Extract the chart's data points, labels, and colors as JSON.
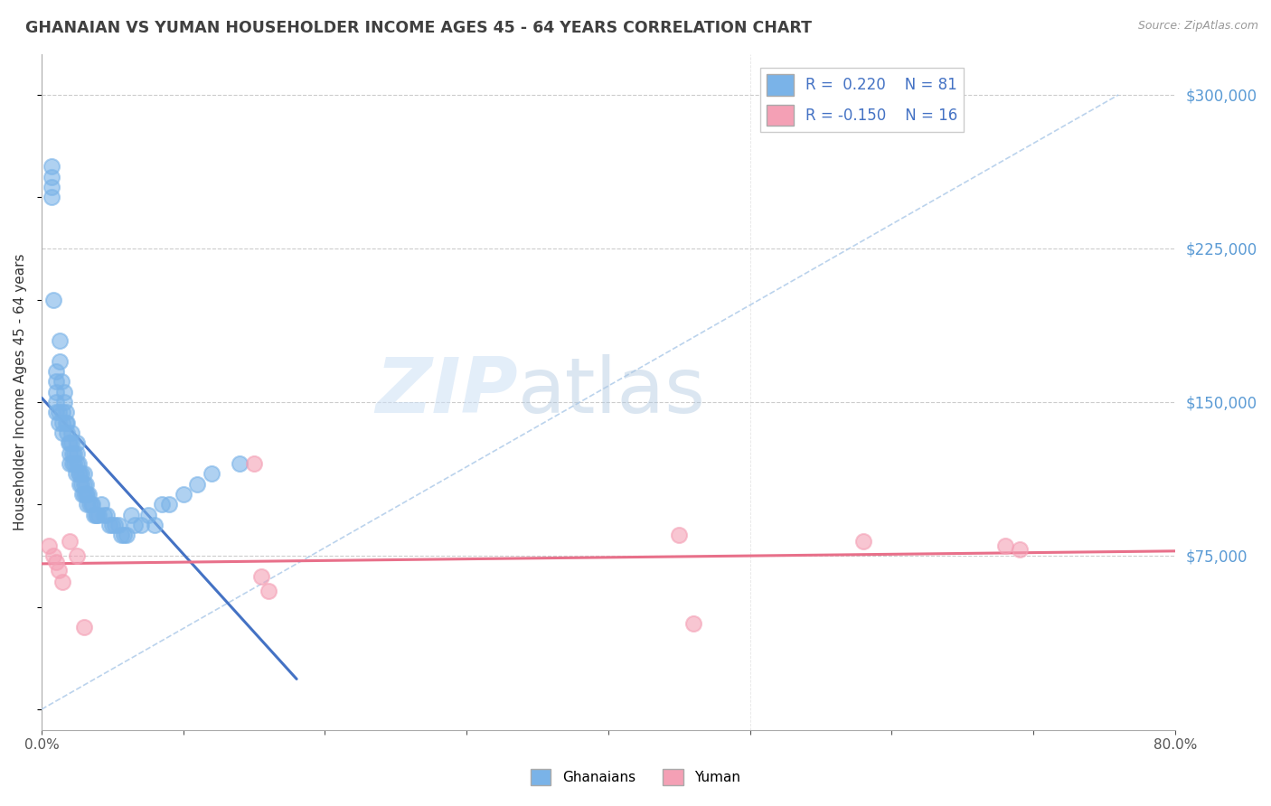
{
  "title": "GHANAIAN VS YUMAN HOUSEHOLDER INCOME AGES 45 - 64 YEARS CORRELATION CHART",
  "source": "Source: ZipAtlas.com",
  "ylabel": "Householder Income Ages 45 - 64 years",
  "xlim": [
    0.0,
    0.8
  ],
  "ylim": [
    -10000,
    320000
  ],
  "ytick_values": [
    0,
    75000,
    150000,
    225000,
    300000
  ],
  "r_ghanaian": 0.22,
  "n_ghanaian": 81,
  "r_yuman": -0.15,
  "n_yuman": 16,
  "ghanaian_color": "#7ab3e8",
  "yuman_color": "#f4a0b5",
  "ghanaian_line_color": "#4472c4",
  "yuman_line_color": "#e8708a",
  "diagonal_line_color": "#aac8e8",
  "background_color": "#ffffff",
  "ghanaian_x": [
    0.007,
    0.007,
    0.007,
    0.007,
    0.008,
    0.01,
    0.01,
    0.01,
    0.01,
    0.01,
    0.012,
    0.012,
    0.013,
    0.013,
    0.014,
    0.015,
    0.015,
    0.015,
    0.016,
    0.016,
    0.017,
    0.017,
    0.018,
    0.018,
    0.019,
    0.02,
    0.02,
    0.02,
    0.021,
    0.021,
    0.022,
    0.022,
    0.023,
    0.023,
    0.024,
    0.025,
    0.025,
    0.025,
    0.026,
    0.026,
    0.027,
    0.027,
    0.028,
    0.028,
    0.029,
    0.03,
    0.03,
    0.03,
    0.031,
    0.031,
    0.032,
    0.032,
    0.033,
    0.034,
    0.035,
    0.036,
    0.037,
    0.038,
    0.039,
    0.04,
    0.042,
    0.044,
    0.046,
    0.048,
    0.05,
    0.052,
    0.054,
    0.056,
    0.058,
    0.06,
    0.063,
    0.066,
    0.07,
    0.075,
    0.08,
    0.085,
    0.09,
    0.1,
    0.11,
    0.12,
    0.14
  ],
  "ghanaian_y": [
    265000,
    260000,
    255000,
    250000,
    200000,
    165000,
    160000,
    155000,
    150000,
    145000,
    145000,
    140000,
    180000,
    170000,
    160000,
    145000,
    140000,
    135000,
    155000,
    150000,
    145000,
    140000,
    140000,
    135000,
    130000,
    130000,
    125000,
    120000,
    135000,
    130000,
    125000,
    120000,
    125000,
    120000,
    115000,
    130000,
    125000,
    120000,
    120000,
    115000,
    115000,
    110000,
    115000,
    110000,
    105000,
    115000,
    110000,
    105000,
    110000,
    105000,
    105000,
    100000,
    105000,
    100000,
    100000,
    100000,
    95000,
    95000,
    95000,
    95000,
    100000,
    95000,
    95000,
    90000,
    90000,
    90000,
    90000,
    85000,
    85000,
    85000,
    95000,
    90000,
    90000,
    95000,
    90000,
    100000,
    100000,
    105000,
    110000,
    115000,
    120000
  ],
  "yuman_x": [
    0.005,
    0.008,
    0.01,
    0.012,
    0.015,
    0.02,
    0.025,
    0.03,
    0.15,
    0.155,
    0.16,
    0.45,
    0.46,
    0.58,
    0.68,
    0.69
  ],
  "yuman_y": [
    80000,
    75000,
    72000,
    68000,
    62000,
    82000,
    75000,
    40000,
    120000,
    65000,
    58000,
    85000,
    42000,
    82000,
    80000,
    78000
  ]
}
